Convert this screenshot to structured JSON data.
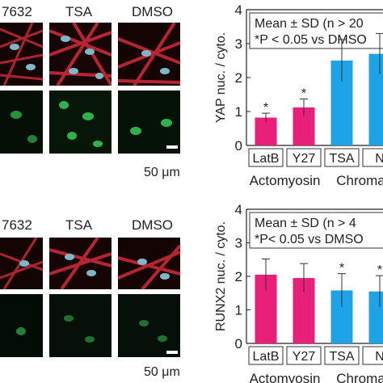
{
  "colors": {
    "actin_red": "#d42a3a",
    "nucleus_blue": "#7fb6c8",
    "gfp_green": "#2fb24a",
    "bar_magenta": "#e8207a",
    "bar_blue": "#1ea4e6"
  },
  "top": {
    "column_labels": [
      "7632",
      "TSA",
      "DMSO"
    ],
    "scale_bar_label": "50 μm"
  },
  "bottom": {
    "column_labels": [
      "7632",
      "TSA",
      "DMSO"
    ],
    "scale_bar_label": "50 μm"
  },
  "chart_data": [
    {
      "type": "bar",
      "ylabel": "YAP nuc. / cyto.",
      "ylim": [
        0,
        4
      ],
      "yticks": [
        "0",
        "1",
        "2",
        "3",
        "4"
      ],
      "categories": [
        "LatB",
        "Y27",
        "TSA",
        "N"
      ],
      "values": [
        0.82,
        1.12,
        2.5,
        2.7
      ],
      "errors": [
        0.13,
        0.25,
        0.62,
        0.6
      ],
      "significant": [
        true,
        true,
        false,
        false
      ],
      "bar_colors": [
        "#e8207a",
        "#e8207a",
        "#1ea4e6",
        "#1ea4e6"
      ],
      "groups": [
        "Actomyosin",
        "Chroma"
      ],
      "annotation": [
        "Mean ± SD   (n > 20",
        "*P < 0.05 vs DMSO"
      ],
      "star": "*"
    },
    {
      "type": "bar",
      "ylabel": "RUNX2 nuc. / cyto.",
      "ylim": [
        0,
        4
      ],
      "yticks": [
        "0",
        "1",
        "2",
        "3",
        "4"
      ],
      "categories": [
        "LatB",
        "Y27",
        "TSA",
        "N"
      ],
      "values": [
        2.05,
        1.95,
        1.58,
        1.55
      ],
      "errors": [
        0.47,
        0.43,
        0.5,
        0.47
      ],
      "significant": [
        false,
        false,
        true,
        true
      ],
      "bar_colors": [
        "#e8207a",
        "#e8207a",
        "#1ea4e6",
        "#1ea4e6"
      ],
      "groups": [
        "Actomyosin",
        "Chroma"
      ],
      "annotation": [
        "Mean ± SD   (n > 4",
        "*P< 0.05 vs DMSO"
      ],
      "star": "*"
    }
  ]
}
